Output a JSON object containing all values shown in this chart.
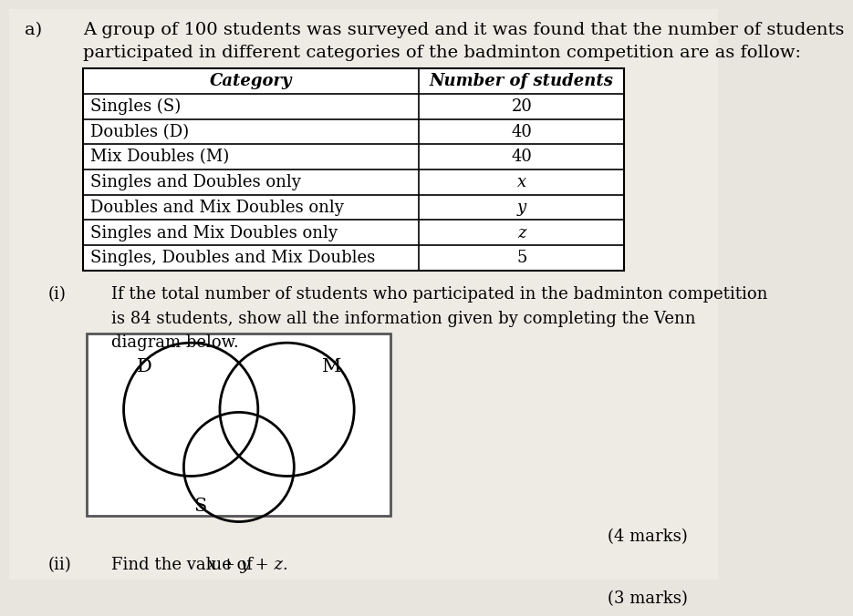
{
  "background_color": "#e8e4de",
  "page_bg": "#f0ede8",
  "title_prefix": "a)",
  "title_text": "A group of 100 students was surveyed and it was found that the number of students\nparticipated in different categories of the badminton competition are as follow:",
  "table_headers": [
    "Category",
    "Number of students"
  ],
  "table_rows": [
    [
      "Singles (S)",
      "20"
    ],
    [
      "Doubles (D)",
      "40"
    ],
    [
      "Mix Doubles (M)",
      "40"
    ],
    [
      "Singles and Doubles only",
      "x"
    ],
    [
      "Doubles and Mix Doubles only",
      "y"
    ],
    [
      "Singles and Mix Doubles only",
      "z"
    ],
    [
      "Singles, Doubles and Mix Doubles",
      "5"
    ]
  ],
  "part_i_label": "(i)",
  "part_i_text": "If the total number of students who participated in the badminton competition\nis 84 students, show all the information given by completing the Venn\ndiagram below.",
  "part_i_marks": "(4 marks)",
  "part_ii_label": "(ii)",
  "part_ii_text": "Find the value of ",
  "part_ii_formula": "x + y + z.",
  "part_ii_marks": "(3 marks)",
  "venn_label_D": "D",
  "venn_label_M": "M",
  "venn_label_S": "S",
  "font_size_title": 14,
  "font_size_table": 13,
  "font_size_body": 13,
  "font_size_marks": 13,
  "font_size_venn_label": 15
}
